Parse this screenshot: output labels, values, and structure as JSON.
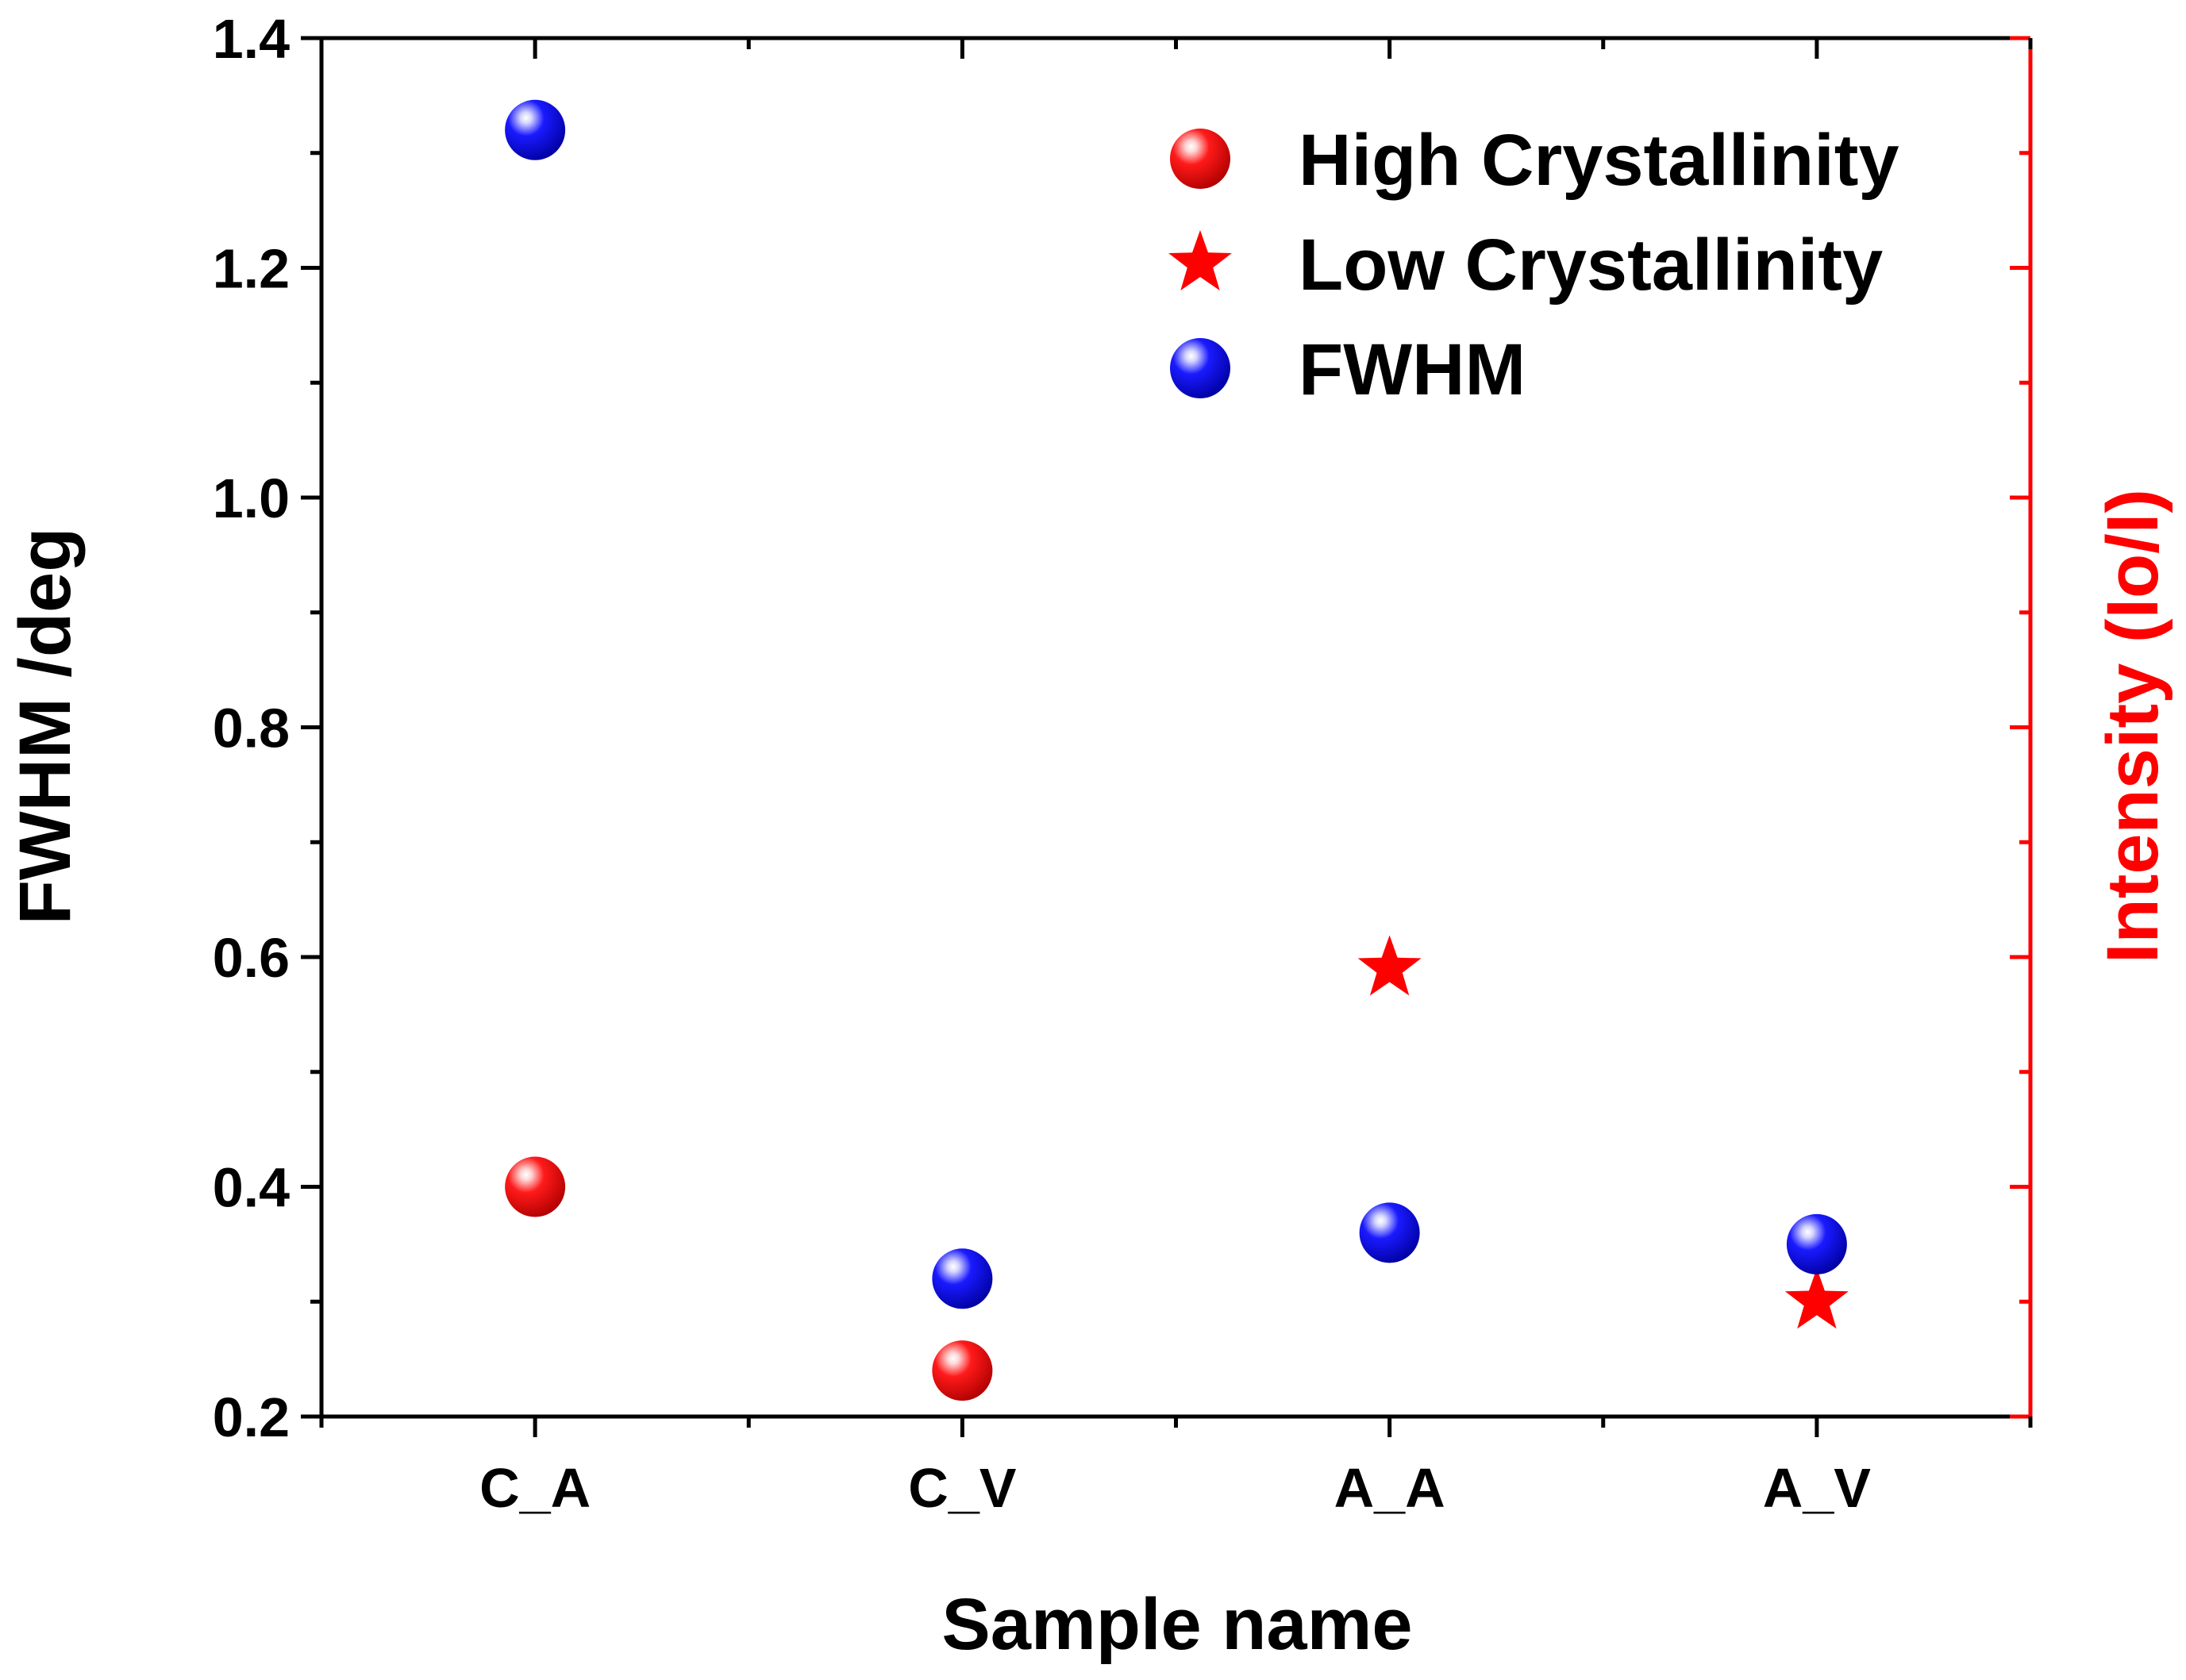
{
  "chart_data": {
    "type": "scatter",
    "title": "",
    "xlabel": "Sample name",
    "ylabel": "FWHM /deg",
    "y2label": "Intensity (Io/I)",
    "categories": [
      "C_A",
      "C_V",
      "A_A",
      "A_V"
    ],
    "ylim": [
      0.2,
      1.4
    ],
    "yticks": [
      "0.2",
      "0.4",
      "0.6",
      "0.8",
      "1.0",
      "1.2",
      "1.4"
    ],
    "grid": false,
    "legend_position": "top-right",
    "series": [
      {
        "name": "High Crystallinity",
        "marker": "sphere",
        "color": "#ff0000",
        "points": [
          {
            "category": "C_A",
            "y": 0.4
          },
          {
            "category": "C_V",
            "y": 0.24
          }
        ]
      },
      {
        "name": "Low Crystallinity",
        "marker": "star",
        "color": "#ff0000",
        "points": [
          {
            "category": "A_A",
            "y": 0.59
          },
          {
            "category": "A_V",
            "y": 0.3
          }
        ]
      },
      {
        "name": "FWHM",
        "marker": "sphere",
        "color": "#0000ff",
        "points": [
          {
            "category": "C_A",
            "y": 1.32
          },
          {
            "category": "C_V",
            "y": 0.32
          },
          {
            "category": "A_A",
            "y": 0.36
          },
          {
            "category": "A_V",
            "y": 0.35
          }
        ]
      }
    ]
  },
  "colors": {
    "left_axis": "#000000",
    "right_axis": "#ff0000"
  }
}
